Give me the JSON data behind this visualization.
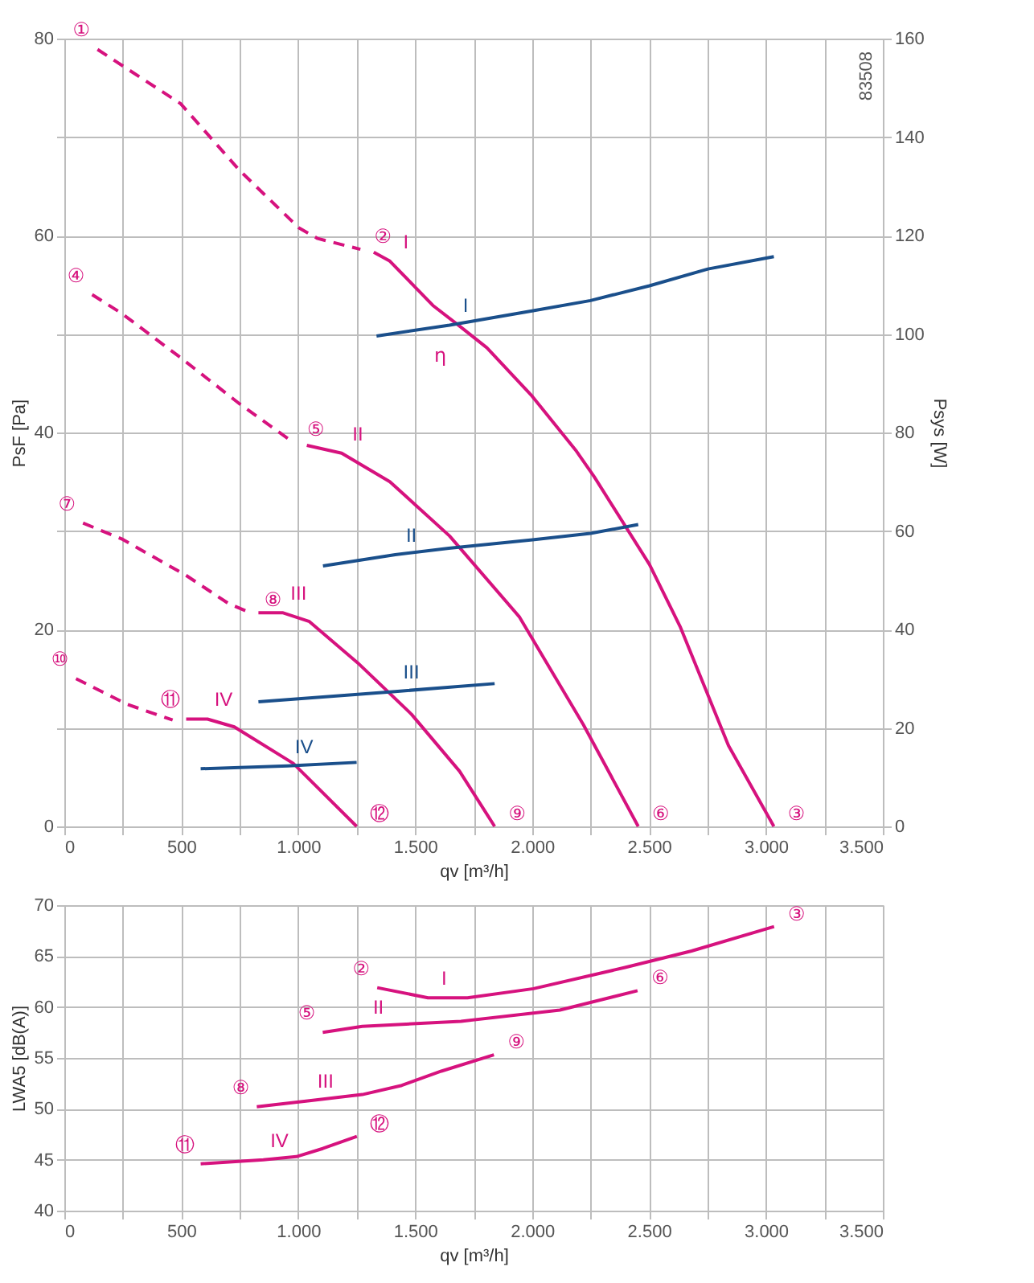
{
  "chart_data": [
    {
      "type": "line",
      "xlabel": "qv [m³/h]",
      "ylabel": "PsF [Pa]",
      "y2label": "Psys [W]",
      "xlim": [
        0,
        3500
      ],
      "xticks": [
        0,
        {
          "value": 250,
          "label": null
        },
        500,
        {
          "value": 750,
          "label": null
        },
        {
          "value": 1000,
          "label": "1.000"
        },
        {
          "value": 1250,
          "label": null
        },
        {
          "value": 1500,
          "label": "1.500"
        },
        {
          "value": 1750,
          "label": null
        },
        {
          "value": 2000,
          "label": "2.000"
        },
        {
          "value": 2250,
          "label": null
        },
        {
          "value": 2500,
          "label": "2.500"
        },
        {
          "value": 2750,
          "label": null
        },
        {
          "value": 3000,
          "label": "3.000"
        },
        {
          "value": 3250,
          "label": null
        },
        {
          "value": 3500,
          "label": "3.500"
        }
      ],
      "ylim": [
        0,
        80
      ],
      "yticks": [
        0,
        {
          "value": 10,
          "label": null
        },
        20,
        {
          "value": 30,
          "label": null
        },
        40,
        {
          "value": 50,
          "label": null
        },
        60,
        {
          "value": 70,
          "label": null
        },
        80
      ],
      "y2lim": [
        0,
        160
      ],
      "y2ticks": [
        0,
        20,
        40,
        60,
        80,
        100,
        120,
        140,
        160
      ],
      "grid": true,
      "series": [
        {
          "color": "#d6127e",
          "line_style": "dashed",
          "x": [
            142,
            497,
            750,
            1002,
            1083,
            1266
          ],
          "values": [
            78.9,
            73.4,
            66.6,
            60.8,
            59.7,
            58.6
          ]
        },
        {
          "name": "I",
          "color": "#d6127e",
          "line_style": "solid",
          "x": [
            1323,
            1392,
            1576,
            1690,
            1807,
            2000,
            2190,
            2266,
            2502,
            2633,
            2840,
            3034
          ],
          "values": [
            58.3,
            57.4,
            52.9,
            50.8,
            48.6,
            43.7,
            38.1,
            35.5,
            26.6,
            20.3,
            8.2,
            0
          ]
        },
        {
          "color": "#d6127e",
          "line_style": "dashed",
          "x": [
            119,
            245,
            497,
            750,
            979
          ],
          "values": [
            54,
            52.1,
            47.6,
            42.9,
            39.0
          ]
        },
        {
          "name": "II",
          "color": "#d6127e",
          "line_style": "solid",
          "x": [
            1037,
            1186,
            1392,
            1647,
            1945,
            2220,
            2454
          ],
          "values": [
            38.7,
            37.9,
            35.0,
            29.5,
            21.3,
            10.3,
            0
          ]
        },
        {
          "color": "#d6127e",
          "line_style": "dashed",
          "x": [
            80,
            245,
            520,
            704,
            796
          ],
          "values": [
            30.8,
            29.2,
            25.5,
            22.6,
            21.7
          ]
        },
        {
          "name": "III",
          "color": "#d6127e",
          "line_style": "solid",
          "x": [
            830,
            933,
            1048,
            1255,
            1484,
            1690,
            1840
          ],
          "values": [
            21.7,
            21.7,
            20.8,
            16.6,
            11.4,
            5.6,
            0
          ]
        },
        {
          "color": "#d6127e",
          "line_style": "dashed",
          "x": [
            50,
            268,
            463
          ],
          "values": [
            15.0,
            12.4,
            10.8
          ]
        },
        {
          "name": "IV",
          "color": "#d6127e",
          "line_style": "solid",
          "x": [
            521,
            612,
            727,
            979,
            1250
          ],
          "values": [
            10.9,
            10.9,
            10.1,
            6.4,
            0
          ]
        },
        {
          "name": "I",
          "color": "#1a4f8b",
          "axis": "y2",
          "line_style": "solid",
          "x": [
            1335,
            1647,
            2000,
            2250,
            2502,
            2752,
            3034
          ],
          "values": [
            99.6,
            101.8,
            104.7,
            106.8,
            109.8,
            113.2,
            115.7
          ]
        },
        {
          "name": "II",
          "color": "#1a4f8b",
          "axis": "y2",
          "line_style": "solid",
          "x": [
            1106,
            1415,
            1644,
            2002,
            2250,
            2454
          ],
          "values": [
            52.9,
            55.2,
            56.5,
            58.2,
            59.5,
            61.3
          ]
        },
        {
          "name": "III",
          "color": "#1a4f8b",
          "axis": "y2",
          "line_style": "solid",
          "x": [
            830,
            1415,
            1840
          ],
          "values": [
            25.3,
            27.4,
            29.0
          ]
        },
        {
          "name": "IV",
          "color": "#1a4f8b",
          "axis": "y2",
          "line_style": "solid",
          "x": [
            583,
            956,
            1250
          ],
          "values": [
            11.7,
            12.3,
            13.0
          ]
        }
      ],
      "annotations": [
        "83508",
        {
          "text": "①",
          "x": 142,
          "y": 78.9
        },
        {
          "text": "②",
          "x": 1266,
          "y": 58.6
        },
        {
          "text": "③",
          "x": 3034,
          "y": 0
        },
        {
          "text": "④",
          "x": 119,
          "y": 54
        },
        {
          "text": "⑤",
          "x": 979,
          "y": 39.0
        },
        {
          "text": "⑥",
          "x": 2454,
          "y": 0
        },
        {
          "text": "⑦",
          "x": 80,
          "y": 30.8
        },
        {
          "text": "⑧",
          "x": 796,
          "y": 21.7
        },
        {
          "text": "⑨",
          "x": 1840,
          "y": 0
        },
        {
          "text": "⑩",
          "x": 50,
          "y": 15.0
        },
        {
          "text": "⑪",
          "x": 521,
          "y": 10.9
        },
        {
          "text": "⑫",
          "x": 1250,
          "y": 0
        },
        {
          "text": "η",
          "x": 1690,
          "y": 50.8
        }
      ]
    },
    {
      "type": "line",
      "xlabel": "qv [m³/h]",
      "ylabel": "LWA5 [dB(A)]",
      "xlim": [
        0,
        3500
      ],
      "xticks": [
        0,
        {
          "value": 250,
          "label": null
        },
        500,
        {
          "value": 750,
          "label": null
        },
        {
          "value": 1000,
          "label": "1.000"
        },
        {
          "value": 1250,
          "label": null
        },
        {
          "value": 1500,
          "label": "1.500"
        },
        {
          "value": 1750,
          "label": null
        },
        {
          "value": 2000,
          "label": "2.000"
        },
        {
          "value": 2250,
          "label": null
        },
        {
          "value": 2500,
          "label": "2.500"
        },
        {
          "value": 2750,
          "label": null
        },
        {
          "value": 3000,
          "label": "3.000"
        },
        {
          "value": 3250,
          "label": null
        },
        {
          "value": 3500,
          "label": "3.500"
        }
      ],
      "ylim": [
        40,
        70
      ],
      "yticks": [
        40,
        45,
        50,
        55,
        60,
        65,
        70
      ],
      "grid": true,
      "series": [
        {
          "name": "I",
          "color": "#d6127e",
          "line_style": "solid",
          "x": [
            1338,
            1555,
            1724,
            2006,
            2401,
            2682,
            3035
          ],
          "values": [
            61.9,
            60.9,
            60.9,
            61.8,
            63.9,
            65.5,
            67.9
          ]
        },
        {
          "name": "II",
          "color": "#d6127e",
          "line_style": "solid",
          "x": [
            1105,
            1274,
            1696,
            2119,
            2451
          ],
          "values": [
            57.5,
            58.1,
            58.6,
            59.7,
            61.6
          ]
        },
        {
          "name": "III",
          "color": "#d6127e",
          "line_style": "solid",
          "x": [
            823,
            1048,
            1274,
            1443,
            1612,
            1837
          ],
          "values": [
            50.2,
            50.8,
            51.4,
            52.3,
            53.7,
            55.3
          ]
        },
        {
          "name": "IV",
          "color": "#d6127e",
          "line_style": "solid",
          "x": [
            583,
            851,
            992,
            1105,
            1251
          ],
          "values": [
            44.6,
            45.0,
            45.3,
            46.1,
            47.3
          ]
        }
      ],
      "annotations": [
        {
          "text": "②",
          "x": 1338,
          "y": 61.9
        },
        {
          "text": "③",
          "x": 3035,
          "y": 67.9
        },
        {
          "text": "⑤",
          "x": 1105,
          "y": 57.5
        },
        {
          "text": "⑥",
          "x": 2451,
          "y": 61.6
        },
        {
          "text": "⑧",
          "x": 823,
          "y": 50.2
        },
        {
          "text": "⑨",
          "x": 1837,
          "y": 55.3
        },
        {
          "text": "⑪",
          "x": 583,
          "y": 44.6
        },
        {
          "text": "⑫",
          "x": 1251,
          "y": 47.3
        }
      ]
    }
  ]
}
